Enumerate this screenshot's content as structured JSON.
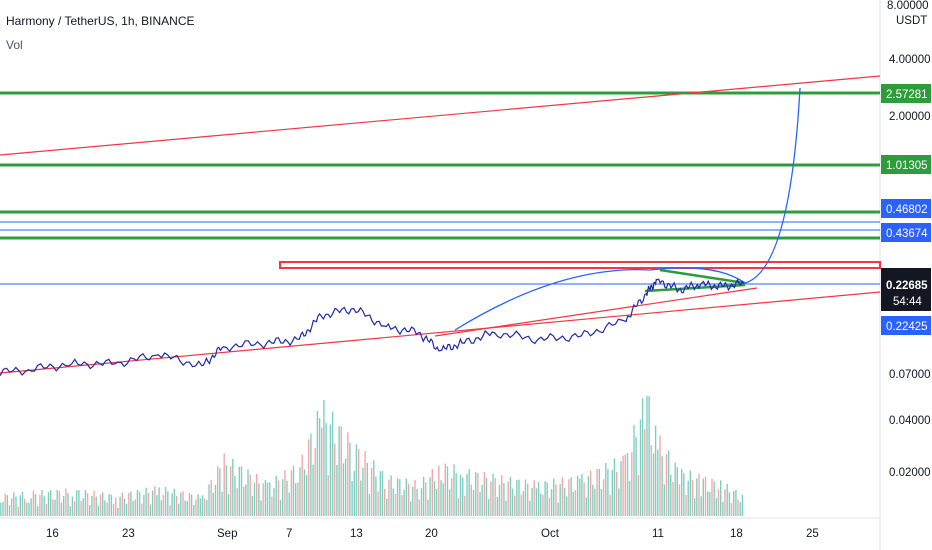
{
  "header": {
    "title": "Harmony / TetherUS, 1h, BINANCE",
    "volume_label": "Vol"
  },
  "chart_data": {
    "type": "line",
    "symbol": "Harmony / TetherUS",
    "interval": "1h",
    "exchange": "BINANCE",
    "currency": "USDT",
    "y_scale": "log",
    "price_axis_ticks": [
      "8.00000",
      "4.00000",
      "2.00000",
      "0.07000",
      "0.04000",
      "0.02000"
    ],
    "x_ticks": [
      "16",
      "23",
      "Sep",
      "7",
      "13",
      "20",
      "Oct",
      "11",
      "18",
      "25"
    ],
    "price_labels": {
      "green_levels": [
        "2.57281",
        "1.01305"
      ],
      "blue_levels": [
        "0.46802",
        "0.43674"
      ],
      "current_price": "0.22685",
      "countdown": "54:44",
      "line_price": "0.22425"
    },
    "price_series": [
      {
        "x": "2021-08-10",
        "y": 0.07
      },
      {
        "x": "2021-08-14",
        "y": 0.074
      },
      {
        "x": "2021-08-18",
        "y": 0.08
      },
      {
        "x": "2021-08-22",
        "y": 0.08
      },
      {
        "x": "2021-08-26",
        "y": 0.09
      },
      {
        "x": "2021-08-30",
        "y": 0.078
      },
      {
        "x": "2021-09-01",
        "y": 0.1
      },
      {
        "x": "2021-09-05",
        "y": 0.105
      },
      {
        "x": "2021-09-08",
        "y": 0.11
      },
      {
        "x": "2021-09-10",
        "y": 0.15
      },
      {
        "x": "2021-09-13",
        "y": 0.165
      },
      {
        "x": "2021-09-16",
        "y": 0.13
      },
      {
        "x": "2021-09-19",
        "y": 0.12
      },
      {
        "x": "2021-09-21",
        "y": 0.095
      },
      {
        "x": "2021-09-23",
        "y": 0.105
      },
      {
        "x": "2021-09-26",
        "y": 0.12
      },
      {
        "x": "2021-09-30",
        "y": 0.11
      },
      {
        "x": "2021-10-04",
        "y": 0.115
      },
      {
        "x": "2021-10-08",
        "y": 0.14
      },
      {
        "x": "2021-10-10",
        "y": 0.2
      },
      {
        "x": "2021-10-11",
        "y": 0.24
      },
      {
        "x": "2021-10-13",
        "y": 0.21
      },
      {
        "x": "2021-10-15",
        "y": 0.225
      },
      {
        "x": "2021-10-17",
        "y": 0.22
      },
      {
        "x": "2021-10-19",
        "y": 0.228
      }
    ],
    "volume_series": [
      {
        "x": "2021-08-10",
        "y": 0.15
      },
      {
        "x": "2021-08-14",
        "y": 0.18
      },
      {
        "x": "2021-08-18",
        "y": 0.2
      },
      {
        "x": "2021-08-22",
        "y": 0.16
      },
      {
        "x": "2021-08-26",
        "y": 0.22
      },
      {
        "x": "2021-08-30",
        "y": 0.15
      },
      {
        "x": "2021-09-01",
        "y": 0.45
      },
      {
        "x": "2021-09-05",
        "y": 0.25
      },
      {
        "x": "2021-09-08",
        "y": 0.4
      },
      {
        "x": "2021-09-10",
        "y": 0.85
      },
      {
        "x": "2021-09-13",
        "y": 0.55
      },
      {
        "x": "2021-09-16",
        "y": 0.3
      },
      {
        "x": "2021-09-19",
        "y": 0.25
      },
      {
        "x": "2021-09-21",
        "y": 0.4
      },
      {
        "x": "2021-09-23",
        "y": 0.35
      },
      {
        "x": "2021-09-26",
        "y": 0.3
      },
      {
        "x": "2021-09-30",
        "y": 0.25
      },
      {
        "x": "2021-10-04",
        "y": 0.3
      },
      {
        "x": "2021-10-08",
        "y": 0.45
      },
      {
        "x": "2021-10-10",
        "y": 0.95
      },
      {
        "x": "2021-10-11",
        "y": 0.6
      },
      {
        "x": "2021-10-13",
        "y": 0.35
      },
      {
        "x": "2021-10-15",
        "y": 0.3
      },
      {
        "x": "2021-10-17",
        "y": 0.25
      },
      {
        "x": "2021-10-19",
        "y": 0.15
      }
    ],
    "colors": {
      "price": "#1f2aa8",
      "level_green": "#2e9c3a",
      "level_blue": "#2962ff",
      "trend_red": "#f23645",
      "label_dark": "#131722",
      "label_current": "#2962ff",
      "volume_up": "#7fcfc0",
      "volume_down": "#f4a7a7"
    }
  }
}
